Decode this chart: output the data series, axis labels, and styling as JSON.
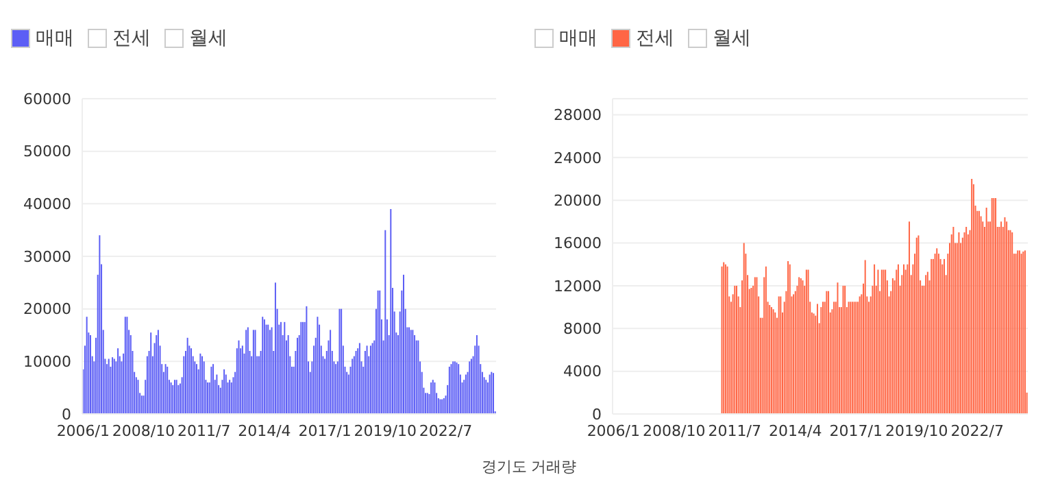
{
  "chart_data": [
    {
      "type": "bar",
      "stacked": true,
      "categories": [
        "2006/1",
        null,
        null,
        null,
        null,
        null,
        null,
        null,
        null,
        null,
        null,
        null,
        null,
        null,
        null,
        null,
        null,
        null,
        null,
        null,
        null,
        null,
        null,
        null,
        null,
        null,
        null,
        null,
        null,
        null,
        null,
        null,
        null,
        "2008/10",
        null,
        null,
        null,
        null,
        null,
        null,
        null,
        null,
        null,
        null,
        null,
        null,
        null,
        null,
        null,
        null,
        null,
        null,
        null,
        null,
        null,
        null,
        null,
        null,
        null,
        null,
        null,
        null,
        null,
        null,
        null,
        null,
        "2011/7",
        null,
        null,
        null,
        null,
        null,
        null,
        null,
        null,
        null,
        null,
        null,
        null,
        null,
        null,
        null,
        null,
        null,
        null,
        null,
        null,
        null,
        null,
        null,
        null,
        null,
        null,
        null,
        null,
        null,
        null,
        null,
        null,
        "2014/4",
        null,
        null,
        null,
        null,
        null,
        null,
        null,
        null,
        null,
        null,
        null,
        null,
        null,
        null,
        null,
        null,
        null,
        null,
        null,
        null,
        null,
        null,
        null,
        null,
        null,
        null,
        null,
        null,
        null,
        null,
        null,
        null,
        "2017/1",
        null,
        null,
        null,
        null,
        null,
        null,
        null,
        null,
        null,
        null,
        null,
        null,
        null,
        null,
        null,
        null,
        null,
        null,
        null,
        null,
        null,
        null,
        null,
        null,
        null,
        null,
        null,
        null,
        null,
        null,
        null,
        null,
        "2019/10",
        null,
        null,
        null,
        null,
        null,
        null,
        null,
        null,
        null,
        null,
        null,
        null,
        null,
        null,
        null,
        null,
        null,
        null,
        null,
        null,
        null,
        null,
        null,
        null,
        null,
        null,
        null,
        null,
        null,
        null,
        null,
        null,
        "2022/7",
        null,
        null,
        null,
        null,
        null,
        null,
        null,
        null,
        null,
        null,
        null,
        null,
        null,
        null,
        null,
        null,
        null,
        null,
        null,
        null,
        null,
        null,
        null,
        null,
        null,
        null,
        null
      ],
      "ylim": [
        0,
        60000
      ],
      "yticks": [
        0,
        10000,
        20000,
        30000,
        40000,
        50000,
        60000
      ],
      "grid": "y",
      "legend": "top left",
      "series": [
        {
          "name": "매매",
          "color": "#5c5ef5",
          "values": [
            8500,
            13000,
            18500,
            15500,
            15000,
            11000,
            10000,
            14500,
            26500,
            34000,
            28500,
            16000,
            10500,
            9500,
            10500,
            9000,
            10800,
            10500,
            10000,
            12500,
            11000,
            10000,
            11500,
            18500,
            18500,
            16000,
            15000,
            12000,
            8000,
            7000,
            6500,
            4000,
            3500,
            3500,
            6500,
            11000,
            12000,
            15500,
            11000,
            13500,
            15000,
            16000,
            13000,
            9500,
            8000,
            9500,
            9000,
            6500,
            6000,
            5500,
            6500,
            6500,
            5500,
            5800,
            7000,
            11000,
            12000,
            14500,
            13000,
            12500,
            11000,
            10000,
            9500,
            8500,
            11500,
            11000,
            10000,
            6500,
            6000,
            6000,
            9000,
            9500,
            6500,
            7500,
            5500,
            5000,
            6500,
            8500,
            7500,
            6000,
            6500,
            6000,
            7000,
            8000,
            12500,
            14000,
            12500,
            13000,
            11500,
            16000,
            16500,
            12000,
            11000,
            16000,
            16000,
            11000,
            11000,
            12000,
            18500,
            18000,
            17000,
            17000,
            16000,
            16500,
            12000,
            25000,
            20000,
            17000,
            17500,
            15000,
            17500,
            14000,
            15000,
            11000,
            9000,
            9000,
            12000,
            14500,
            15000,
            17500,
            17500,
            17500,
            20500,
            10000,
            8000,
            10000,
            13000,
            14500,
            18500,
            17000,
            13000,
            11000,
            10500,
            12000,
            14000,
            16000,
            12000,
            10000,
            9500,
            10000,
            20000,
            20000,
            13000,
            9000,
            8000,
            7500,
            9000,
            10500,
            11000,
            12000,
            12500,
            13500,
            10000,
            9000,
            12000,
            13000,
            11000,
            13000,
            13500,
            14000,
            20000,
            23500,
            23500,
            18000,
            14000,
            35000,
            18000,
            15000,
            39000,
            24000,
            19500,
            15500,
            15000,
            19500,
            23500,
            26500,
            20000,
            16500,
            16500,
            16000,
            16000,
            15000,
            14000,
            14000,
            10000,
            8000,
            5000,
            4000,
            4000,
            3800,
            6000,
            6500,
            6000,
            4000,
            3000,
            2800,
            2800,
            3000,
            3500,
            5500,
            9000,
            9500,
            10000,
            10000,
            9800,
            9500,
            7500,
            6000,
            6500,
            7500,
            8000,
            10000,
            10500,
            11000,
            13000,
            15000,
            13000,
            9500,
            8000,
            7000,
            6500,
            6000,
            7500,
            8000,
            7800,
            500
          ]
        },
        {
          "name": "전세",
          "color": "#ffffff",
          "values": [
            null,
            null,
            null,
            null,
            null,
            null,
            null,
            null,
            null,
            null,
            null,
            null,
            null,
            null,
            null,
            null,
            null,
            null,
            null,
            null,
            null,
            null,
            null,
            null,
            null,
            null,
            null,
            null,
            null,
            null,
            null,
            null,
            null,
            null,
            null,
            null,
            null,
            null,
            null,
            null,
            null,
            null,
            null,
            null,
            null,
            null,
            null,
            null,
            null,
            null,
            null,
            null,
            null,
            null,
            null,
            null,
            null,
            null,
            null,
            null,
            null,
            null,
            null,
            null,
            null,
            null,
            null,
            null,
            null,
            null,
            null,
            null,
            null,
            null,
            null,
            null,
            null,
            null,
            null,
            null,
            null,
            null,
            null,
            null,
            null,
            null,
            null,
            null,
            null,
            null,
            null,
            null,
            null,
            null,
            null,
            null,
            null,
            null,
            null,
            null,
            null,
            null,
            null,
            null,
            null,
            null,
            null,
            null,
            null,
            null,
            null,
            null,
            null,
            null,
            null,
            null,
            null,
            null,
            null,
            null,
            null,
            null,
            null,
            null,
            null,
            null,
            null,
            null,
            null,
            null,
            null,
            null,
            null,
            null,
            null,
            null,
            null,
            null,
            null,
            null,
            null,
            null,
            null,
            null,
            null,
            null,
            null,
            null,
            null,
            null,
            null,
            null,
            null,
            null,
            null,
            null,
            null,
            null,
            null,
            null,
            null,
            null,
            null,
            null,
            null,
            null,
            null,
            null,
            null,
            null,
            null,
            null,
            null,
            null,
            null,
            null,
            null,
            null,
            null,
            null,
            null,
            null,
            null,
            null,
            null,
            null,
            null,
            null,
            null,
            null,
            null,
            null,
            null,
            null,
            null,
            null,
            null,
            null,
            null,
            null,
            null,
            null,
            null,
            null,
            null,
            null,
            null,
            null,
            null,
            null,
            null,
            null,
            null,
            null,
            null,
            null,
            null,
            null,
            null,
            null,
            null,
            null,
            null,
            null,
            null,
            null
          ]
        },
        {
          "name": "월세",
          "color": "#ffffff",
          "values": [
            null,
            null,
            null,
            null,
            null,
            null,
            null,
            null,
            null,
            null,
            null,
            null,
            null,
            null,
            null,
            null,
            null,
            null,
            null,
            null,
            null,
            null,
            null,
            null,
            null,
            null,
            null,
            null,
            null,
            null,
            null,
            null,
            null,
            null,
            null,
            null,
            null,
            null,
            null,
            null,
            null,
            null,
            null,
            null,
            null,
            null,
            null,
            null,
            null,
            null,
            null,
            null,
            null,
            null,
            null,
            null,
            null,
            null,
            null,
            null,
            null,
            null,
            null,
            null,
            null,
            null,
            null,
            null,
            null,
            null,
            null,
            null,
            null,
            null,
            null,
            null,
            null,
            null,
            null,
            null,
            null,
            null,
            null,
            null,
            null,
            null,
            null,
            null,
            null,
            null,
            null,
            null,
            null,
            null,
            null,
            null,
            null,
            null,
            null,
            null,
            null,
            null,
            null,
            null,
            null,
            null,
            null,
            null,
            null,
            null,
            null,
            null,
            null,
            null,
            null,
            null,
            null,
            null,
            null,
            null,
            null,
            null,
            null,
            null,
            null,
            null,
            null,
            null,
            null,
            null,
            null,
            null,
            null,
            null,
            null,
            null,
            null,
            null,
            null,
            null,
            null,
            null,
            null,
            null,
            null,
            null,
            null,
            null,
            null,
            null,
            null,
            null,
            null,
            null,
            null,
            null,
            null,
            null,
            null,
            null,
            null,
            null,
            null,
            null,
            null,
            null,
            null,
            null,
            null,
            null,
            null,
            null,
            null,
            null,
            null,
            null,
            null,
            null,
            null,
            null,
            null,
            null,
            null,
            null,
            null,
            null,
            null,
            null,
            null,
            null,
            null,
            null,
            null,
            null,
            null,
            null,
            null,
            null,
            null,
            null,
            null,
            null,
            null,
            null,
            null,
            null,
            null,
            null,
            null,
            null,
            null,
            null,
            null,
            null,
            null,
            null,
            null,
            null,
            null,
            null,
            null,
            null,
            null,
            null,
            null,
            null
          ]
        }
      ]
    },
    {
      "type": "bar",
      "stacked": true,
      "categories": [
        "2006/1",
        null,
        null,
        null,
        null,
        null,
        null,
        null,
        null,
        null,
        null,
        null,
        null,
        null,
        null,
        null,
        null,
        null,
        null,
        null,
        null,
        null,
        null,
        null,
        null,
        null,
        null,
        null,
        null,
        null,
        null,
        null,
        null,
        "2008/10",
        null,
        null,
        null,
        null,
        null,
        null,
        null,
        null,
        null,
        null,
        null,
        null,
        null,
        null,
        null,
        null,
        null,
        null,
        null,
        null,
        null,
        null,
        null,
        null,
        null,
        null,
        null,
        null,
        null,
        null,
        null,
        null,
        "2011/7",
        null,
        null,
        null,
        null,
        null,
        null,
        null,
        null,
        null,
        null,
        null,
        null,
        null,
        null,
        null,
        null,
        null,
        null,
        null,
        null,
        null,
        null,
        null,
        null,
        null,
        null,
        null,
        null,
        null,
        null,
        null,
        null,
        "2014/4",
        null,
        null,
        null,
        null,
        null,
        null,
        null,
        null,
        null,
        null,
        null,
        null,
        null,
        null,
        null,
        null,
        null,
        null,
        null,
        null,
        null,
        null,
        null,
        null,
        null,
        null,
        null,
        null,
        null,
        null,
        null,
        null,
        "2017/1",
        null,
        null,
        null,
        null,
        null,
        null,
        null,
        null,
        null,
        null,
        null,
        null,
        null,
        null,
        null,
        null,
        null,
        null,
        null,
        null,
        null,
        null,
        null,
        null,
        null,
        null,
        null,
        null,
        null,
        null,
        null,
        null,
        "2019/10",
        null,
        null,
        null,
        null,
        null,
        null,
        null,
        null,
        null,
        null,
        null,
        null,
        null,
        null,
        null,
        null,
        null,
        null,
        null,
        null,
        null,
        null,
        null,
        null,
        null,
        null,
        null,
        null,
        null,
        null,
        null,
        null,
        "2022/7",
        null,
        null,
        null,
        null,
        null,
        null,
        null,
        null,
        null,
        null,
        null,
        null,
        null,
        null,
        null,
        null,
        null,
        null,
        null,
        null,
        null,
        null,
        null,
        null,
        null,
        null,
        null
      ],
      "ylim": [
        0,
        29500
      ],
      "yticks": [
        0,
        4000,
        8000,
        12000,
        16000,
        20000,
        24000,
        28000
      ],
      "grid": "y",
      "legend": "top left",
      "annotations": [
        "경기도 거래량"
      ],
      "series": [
        {
          "name": "매매",
          "color": "#ffffff",
          "values": [
            null,
            null,
            null,
            null,
            null,
            null,
            null,
            null,
            null,
            null,
            null,
            null,
            null,
            null,
            null,
            null,
            null,
            null,
            null,
            null,
            null,
            null,
            null,
            null,
            null,
            null,
            null,
            null,
            null,
            null,
            null,
            null,
            null,
            null,
            null,
            null,
            null,
            null,
            null,
            null,
            null,
            null,
            null,
            null,
            null,
            null,
            null,
            null,
            null,
            null,
            null,
            null,
            null,
            null,
            null,
            null,
            null,
            null,
            null,
            null,
            null,
            null,
            null,
            null,
            null,
            null,
            null,
            null,
            null,
            null,
            null,
            null,
            null,
            null,
            null,
            null,
            null,
            null,
            null,
            null,
            null,
            null,
            null,
            null,
            null,
            null,
            null,
            null,
            null,
            null,
            null,
            null,
            null,
            null,
            null,
            null,
            null,
            null,
            null,
            null,
            null,
            null,
            null,
            null,
            null,
            null,
            null,
            null,
            null,
            null,
            null,
            null,
            null,
            null,
            null,
            null,
            null,
            null,
            null,
            null,
            null,
            null,
            null,
            null,
            null,
            null,
            null,
            null,
            null,
            null,
            null,
            null,
            null,
            null,
            null,
            null,
            null,
            null,
            null,
            null,
            null,
            null,
            null,
            null,
            null,
            null,
            null,
            null,
            null,
            null,
            null,
            null,
            null,
            null,
            null,
            null,
            null,
            null,
            null,
            null,
            null,
            null,
            null,
            null,
            null,
            null,
            null,
            null,
            null,
            null,
            null,
            null,
            null,
            null,
            null,
            null,
            null,
            null,
            null,
            null,
            null,
            null,
            null,
            null,
            null,
            null,
            null,
            null,
            null,
            null,
            null,
            null,
            null,
            null,
            null,
            null,
            null,
            null,
            null,
            null,
            null,
            null,
            null,
            null,
            null,
            null,
            null,
            null,
            null,
            null,
            null,
            null,
            null,
            null,
            null,
            null,
            null,
            null,
            null,
            null,
            null,
            null,
            null,
            null,
            null,
            null
          ]
        },
        {
          "name": "전세",
          "color": "#ff6645",
          "values": [
            null,
            null,
            null,
            null,
            null,
            null,
            null,
            null,
            null,
            null,
            null,
            null,
            null,
            null,
            null,
            null,
            null,
            null,
            null,
            null,
            null,
            null,
            null,
            null,
            null,
            null,
            null,
            null,
            null,
            null,
            null,
            null,
            null,
            null,
            null,
            null,
            null,
            null,
            null,
            null,
            null,
            null,
            null,
            null,
            null,
            null,
            null,
            null,
            null,
            null,
            null,
            null,
            null,
            null,
            null,
            null,
            null,
            null,
            null,
            13800,
            14200,
            14000,
            13800,
            11000,
            10500,
            11200,
            12000,
            12000,
            11000,
            10000,
            12500,
            16000,
            15000,
            13000,
            11700,
            11800,
            12000,
            12800,
            12800,
            11000,
            9000,
            9000,
            12800,
            13800,
            10500,
            10200,
            10000,
            9800,
            9500,
            9000,
            11000,
            11000,
            9500,
            10500,
            11500,
            14300,
            14000,
            11000,
            11200,
            11500,
            12000,
            12800,
            12700,
            12500,
            12000,
            13500,
            13500,
            10500,
            9500,
            9400,
            9200,
            10300,
            8500,
            10000,
            10500,
            10500,
            11500,
            11500,
            9500,
            9800,
            10500,
            10500,
            12300,
            10000,
            10000,
            12000,
            12000,
            10000,
            10500,
            10500,
            10500,
            10500,
            10500,
            10500,
            11000,
            11200,
            12200,
            14400,
            11000,
            10500,
            11000,
            12000,
            14000,
            12000,
            13500,
            11500,
            13500,
            13500,
            13500,
            12500,
            11000,
            11500,
            12700,
            12500,
            13500,
            14000,
            12000,
            13000,
            14000,
            13500,
            14000,
            18000,
            13000,
            14000,
            15000,
            16500,
            16700,
            12500,
            12000,
            12000,
            13000,
            13300,
            12500,
            14500,
            14500,
            15000,
            15500,
            15000,
            14500,
            14000,
            14500,
            13000,
            15000,
            16000,
            16800,
            17500,
            16000,
            16000,
            17000,
            16000,
            16500,
            17000,
            17500,
            16800,
            17200,
            22000,
            21500,
            19500,
            19000,
            19000,
            18500,
            18000,
            17500,
            19300,
            18000,
            18000,
            20200,
            20200,
            20200,
            17500,
            17500,
            18000,
            17500,
            18400,
            18000,
            17200,
            17200,
            17000,
            15000,
            15000,
            15300,
            15300,
            15000,
            15200,
            15300,
            2000
          ]
        },
        {
          "name": "월세",
          "color": "#ffffff",
          "values": [
            null,
            null,
            null,
            null,
            null,
            null,
            null,
            null,
            null,
            null,
            null,
            null,
            null,
            null,
            null,
            null,
            null,
            null,
            null,
            null,
            null,
            null,
            null,
            null,
            null,
            null,
            null,
            null,
            null,
            null,
            null,
            null,
            null,
            null,
            null,
            null,
            null,
            null,
            null,
            null,
            null,
            null,
            null,
            null,
            null,
            null,
            null,
            null,
            null,
            null,
            null,
            null,
            null,
            null,
            null,
            null,
            null,
            null,
            null,
            null,
            null,
            null,
            null,
            null,
            null,
            null,
            null,
            null,
            null,
            null,
            null,
            null,
            null,
            null,
            null,
            null,
            null,
            null,
            null,
            null,
            null,
            null,
            null,
            null,
            null,
            null,
            null,
            null,
            null,
            null,
            null,
            null,
            null,
            null,
            null,
            null,
            null,
            null,
            null,
            null,
            null,
            null,
            null,
            null,
            null,
            null,
            null,
            null,
            null,
            null,
            null,
            null,
            null,
            null,
            null,
            null,
            null,
            null,
            null,
            null,
            null,
            null,
            null,
            null,
            null,
            null,
            null,
            null,
            null,
            null,
            null,
            null,
            null,
            null,
            null,
            null,
            null,
            null,
            null,
            null,
            null,
            null,
            null,
            null,
            null,
            null,
            null,
            null,
            null,
            null,
            null,
            null,
            null,
            null,
            null,
            null,
            null,
            null,
            null,
            null,
            null,
            null,
            null,
            null,
            null,
            null,
            null,
            null,
            null,
            null,
            null,
            null,
            null,
            null,
            null,
            null,
            null,
            null,
            null,
            null,
            null,
            null,
            null,
            null,
            null,
            null,
            null,
            null,
            null,
            null,
            null,
            null,
            null,
            null,
            null,
            null,
            null,
            null,
            null,
            null,
            null,
            null,
            null,
            null,
            null,
            null,
            null,
            null,
            null,
            null,
            null,
            null,
            null,
            null,
            null,
            null,
            null,
            null,
            null,
            null,
            null,
            null,
            null,
            null,
            null,
            null
          ]
        }
      ]
    }
  ]
}
